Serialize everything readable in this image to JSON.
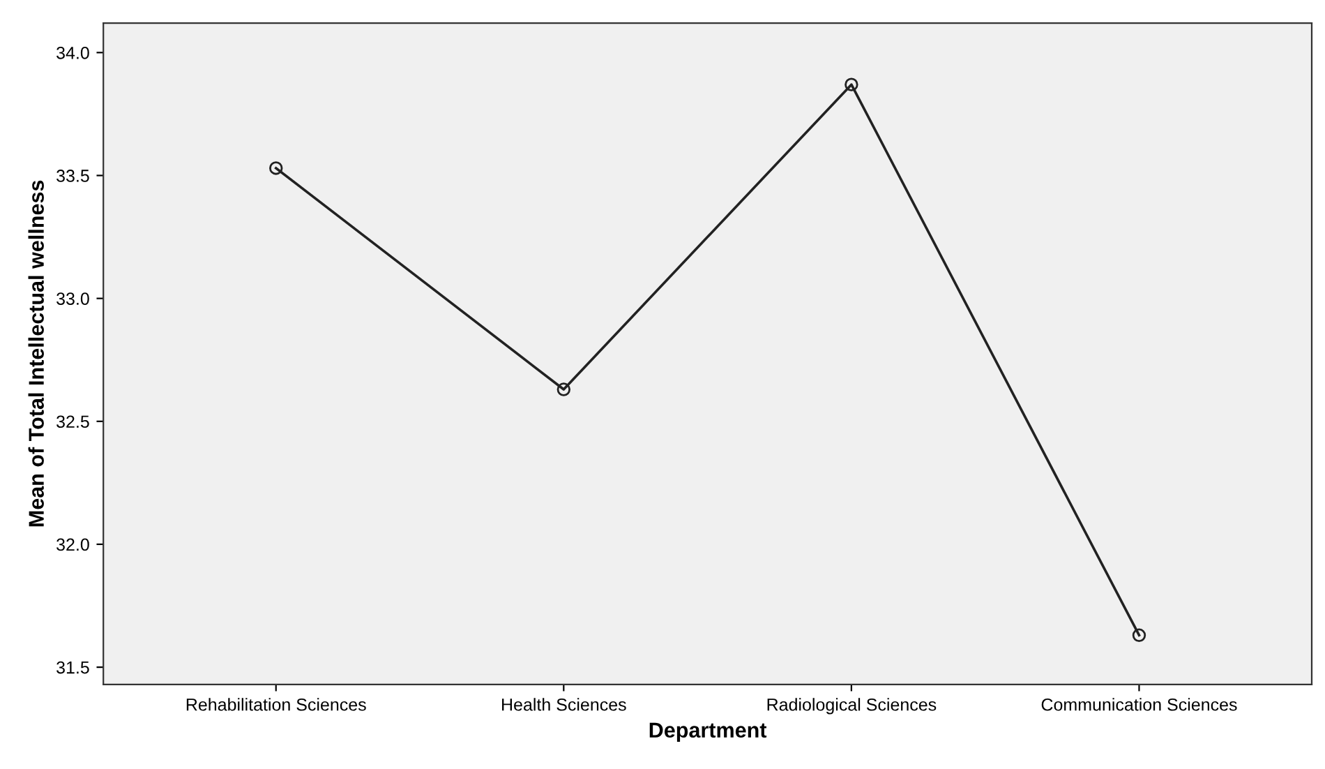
{
  "chart_data": {
    "type": "line",
    "xlabel": "Department",
    "ylabel": "Mean of Total Intellectual wellness",
    "categories": [
      "Rehabilitation Sciences",
      "Health Sciences",
      "Radiological Sciences",
      "Communication Sciences"
    ],
    "series": [
      {
        "color": "#222222",
        "values": [
          33.53,
          32.63,
          33.87,
          31.63
        ]
      }
    ],
    "ylim": [
      31.43,
      34.12
    ],
    "yticks": [
      {
        "value": 31.5,
        "label": "31.5"
      },
      {
        "value": 32.0,
        "label": "32.0"
      },
      {
        "value": 32.5,
        "label": "32.5"
      },
      {
        "value": 33.0,
        "label": "33.0"
      },
      {
        "value": 33.5,
        "label": "33.5"
      },
      {
        "value": 34.0,
        "label": "34.0"
      }
    ],
    "marker": "circle",
    "line_style": "solid",
    "grid": false
  }
}
